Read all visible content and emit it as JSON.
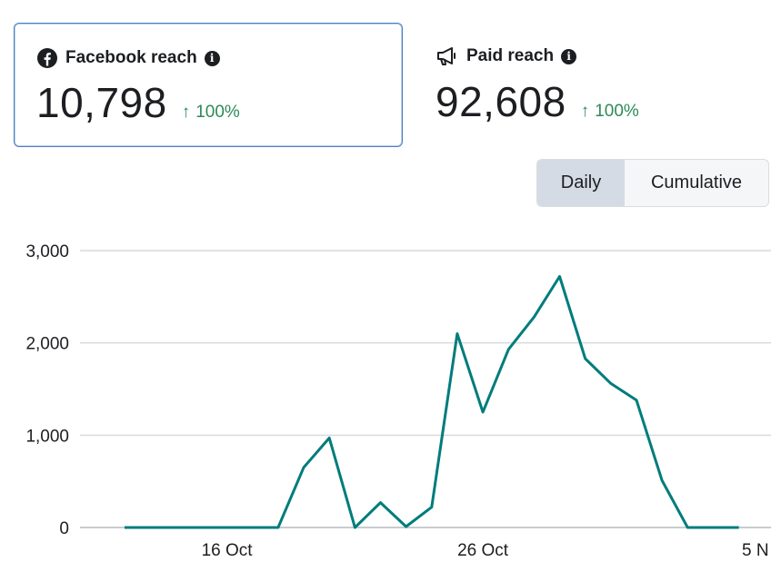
{
  "metrics": {
    "facebook": {
      "label": "Facebook reach",
      "value": "10,798",
      "change": "100%",
      "icon": "facebook-icon"
    },
    "paid": {
      "label": "Paid reach",
      "value": "92,608",
      "change": "100%",
      "icon": "megaphone-icon"
    }
  },
  "toggle": {
    "daily": "Daily",
    "cumulative": "Cumulative",
    "selected": "Daily"
  },
  "colors": {
    "line": "#007c7c",
    "grid": "#d8dadd",
    "up": "#2e8a57",
    "selected_border": "#4d7fbf"
  },
  "chart_data": {
    "type": "line",
    "ylim": [
      0,
      3000
    ],
    "yticks": [
      0,
      1000,
      2000,
      3000
    ],
    "ytick_labels": [
      "0",
      "1,000",
      "2,000",
      "3,000"
    ],
    "xtick_labels": [
      "16 Oct",
      "26 Oct",
      "5 N"
    ],
    "grid": true,
    "x": [
      "12 Oct",
      "13 Oct",
      "14 Oct",
      "15 Oct",
      "16 Oct",
      "17 Oct",
      "18 Oct",
      "19 Oct",
      "20 Oct",
      "21 Oct",
      "22 Oct",
      "23 Oct",
      "24 Oct",
      "25 Oct",
      "26 Oct",
      "27 Oct",
      "28 Oct",
      "29 Oct",
      "30 Oct",
      "31 Oct",
      "1 Nov",
      "2 Nov",
      "3 Nov",
      "4 Nov",
      "5 Nov"
    ],
    "series": [
      {
        "values": [
          0,
          0,
          0,
          0,
          0,
          0,
          0,
          650,
          970,
          0,
          270,
          10,
          220,
          2100,
          1250,
          1930,
          2280,
          2720,
          1830,
          1560,
          1380,
          510,
          0,
          0,
          0
        ]
      }
    ]
  }
}
